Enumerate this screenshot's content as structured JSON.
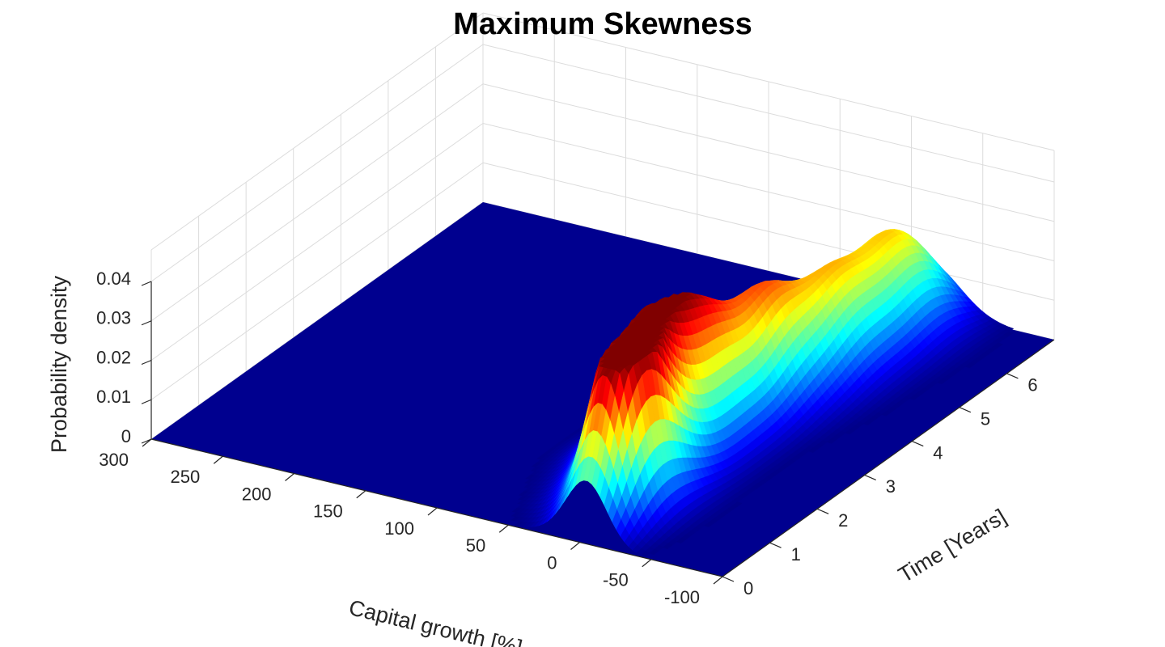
{
  "chart_data": {
    "type": "surface",
    "title": "Maximum Skewness",
    "xlabel": "Capital growth [%]",
    "ylabel": "Time [Years]",
    "zlabel": "Probability density",
    "x_ticks": [
      "-100",
      "-50",
      "0",
      "50",
      "100",
      "150",
      "200",
      "250",
      "300"
    ],
    "y_ticks": [
      "0",
      "1",
      "2",
      "3",
      "4",
      "5",
      "6"
    ],
    "z_ticks": [
      "0",
      "0.01",
      "0.02",
      "0.03",
      "0.04"
    ],
    "xlim": [
      -100,
      300
    ],
    "ylim": [
      0,
      7
    ],
    "zlim": [
      0,
      0.04
    ],
    "grid": true,
    "colormap": "jet",
    "colors": {
      "floor": "#00008f",
      "grid": "#dcdcdc",
      "axis": "#262626"
    },
    "peaks_note_free": true,
    "peaks": [
      {
        "x": -5,
        "y": 0.7,
        "sx": 14,
        "sy": 0.5,
        "z": 0.0385
      },
      {
        "x": 5,
        "y": 1.3,
        "sx": 20,
        "sy": 0.55,
        "z": 0.03
      },
      {
        "x": 18,
        "y": 2.1,
        "sx": 22,
        "sy": 0.5,
        "z": 0.028
      },
      {
        "x": 8,
        "y": 2.9,
        "sx": 20,
        "sy": 0.5,
        "z": 0.026
      },
      {
        "x": 2,
        "y": 3.9,
        "sx": 20,
        "sy": 0.5,
        "z": 0.025
      },
      {
        "x": -10,
        "y": 5.0,
        "sx": 20,
        "sy": 0.6,
        "z": 0.024
      },
      {
        "x": -12,
        "y": 6.3,
        "sx": 22,
        "sy": 0.6,
        "z": 0.024
      }
    ]
  }
}
